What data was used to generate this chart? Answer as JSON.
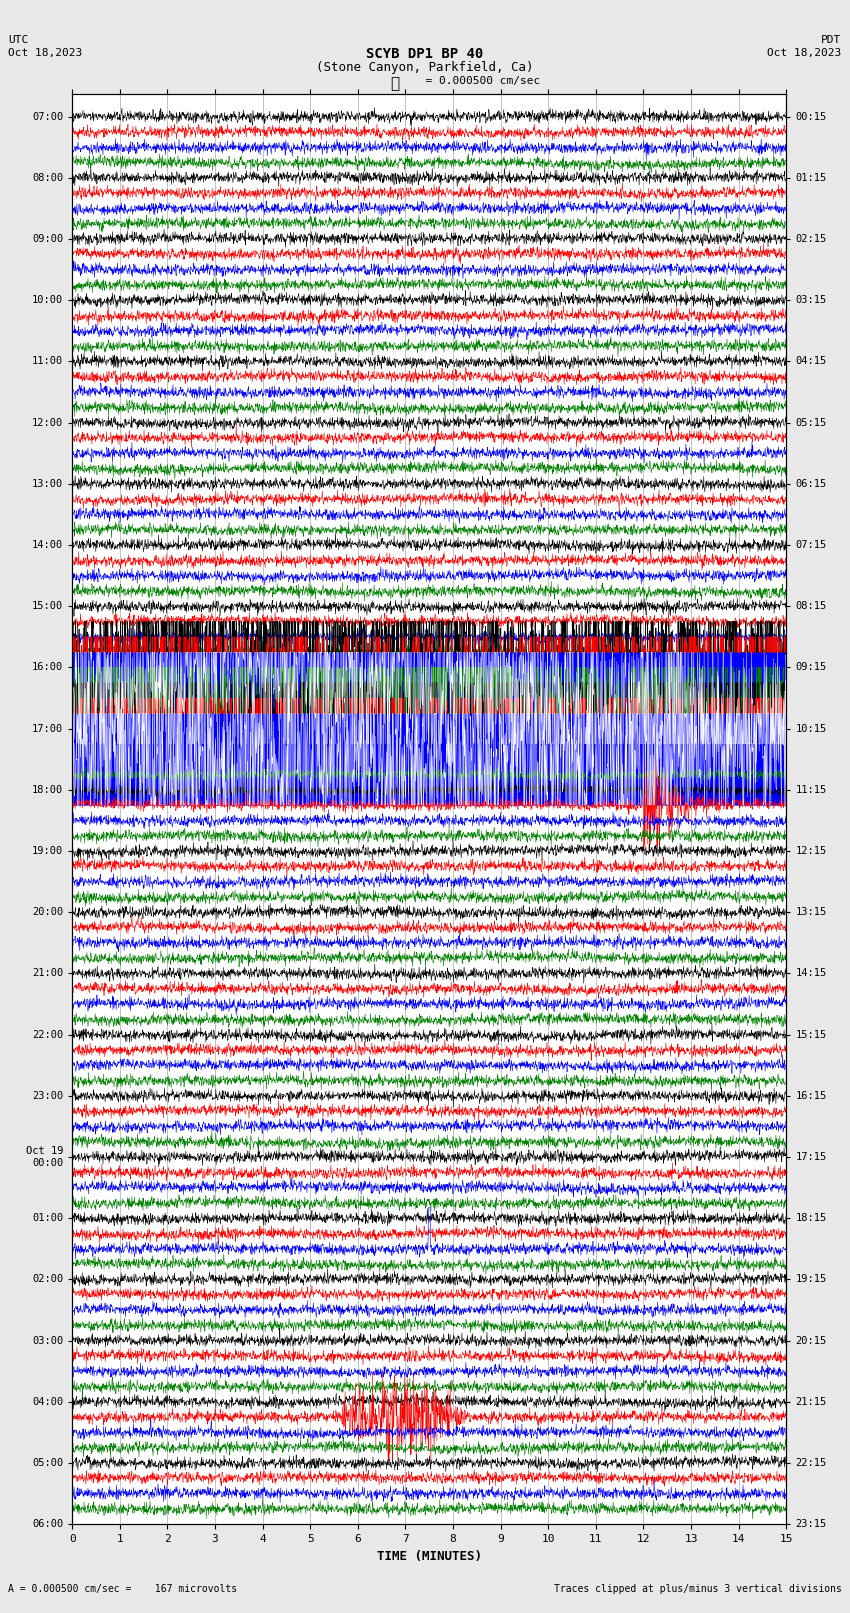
{
  "title_line1": "SCYB DP1 BP 40",
  "title_line2": "(Stone Canyon, Parkfield, Ca)",
  "scale_label": "= 0.000500 cm/sec",
  "left_label": "UTC\nOct 18,2023",
  "right_label": "PDT\nOct 18,2023",
  "xlabel": "TIME (MINUTES)",
  "bottom_left": "A = 0.000500 cm/sec =    167 microvolts",
  "bottom_right": "Traces clipped at plus/minus 3 vertical divisions",
  "bg_color": "#e8e8e8",
  "plot_bg_color": "#ffffff",
  "trace_colors": [
    "black",
    "red",
    "blue",
    "green"
  ],
  "left_times": [
    "07:00",
    "",
    "",
    "",
    "08:00",
    "",
    "",
    "",
    "09:00",
    "",
    "",
    "",
    "10:00",
    "",
    "",
    "",
    "11:00",
    "",
    "",
    "",
    "12:00",
    "",
    "",
    "",
    "13:00",
    "",
    "",
    "",
    "14:00",
    "",
    "",
    "",
    "15:00",
    "",
    "",
    "",
    "16:00",
    "",
    "",
    "",
    "17:00",
    "",
    "",
    "",
    "18:00",
    "",
    "",
    "",
    "19:00",
    "",
    "",
    "",
    "20:00",
    "",
    "",
    "",
    "21:00",
    "",
    "",
    "",
    "22:00",
    "",
    "",
    "",
    "23:00",
    "",
    "",
    "",
    "Oct 19\n00:00",
    "",
    "",
    "",
    "01:00",
    "",
    "",
    "",
    "02:00",
    "",
    "",
    "",
    "03:00",
    "",
    "",
    "",
    "04:00",
    "",
    "",
    "",
    "05:00",
    "",
    "",
    "",
    "06:00",
    "",
    "",
    ""
  ],
  "right_times": [
    "00:15",
    "",
    "",
    "",
    "01:15",
    "",
    "",
    "",
    "02:15",
    "",
    "",
    "",
    "03:15",
    "",
    "",
    "",
    "04:15",
    "",
    "",
    "",
    "05:15",
    "",
    "",
    "",
    "06:15",
    "",
    "",
    "",
    "07:15",
    "",
    "",
    "",
    "08:15",
    "",
    "",
    "",
    "09:15",
    "",
    "",
    "",
    "10:15",
    "",
    "",
    "",
    "11:15",
    "",
    "",
    "",
    "12:15",
    "",
    "",
    "",
    "13:15",
    "",
    "",
    "",
    "14:15",
    "",
    "",
    "",
    "15:15",
    "",
    "",
    "",
    "16:15",
    "",
    "",
    "",
    "17:15",
    "",
    "",
    "",
    "18:15",
    "",
    "",
    "",
    "19:15",
    "",
    "",
    "",
    "20:15",
    "",
    "",
    "",
    "21:15",
    "",
    "",
    "",
    "22:15",
    "",
    "",
    "",
    "23:15",
    "",
    "",
    ""
  ],
  "n_traces": 92,
  "minutes": 15,
  "seed": 42,
  "grid_color": "#aaaaaa",
  "vline_color": "#888888"
}
